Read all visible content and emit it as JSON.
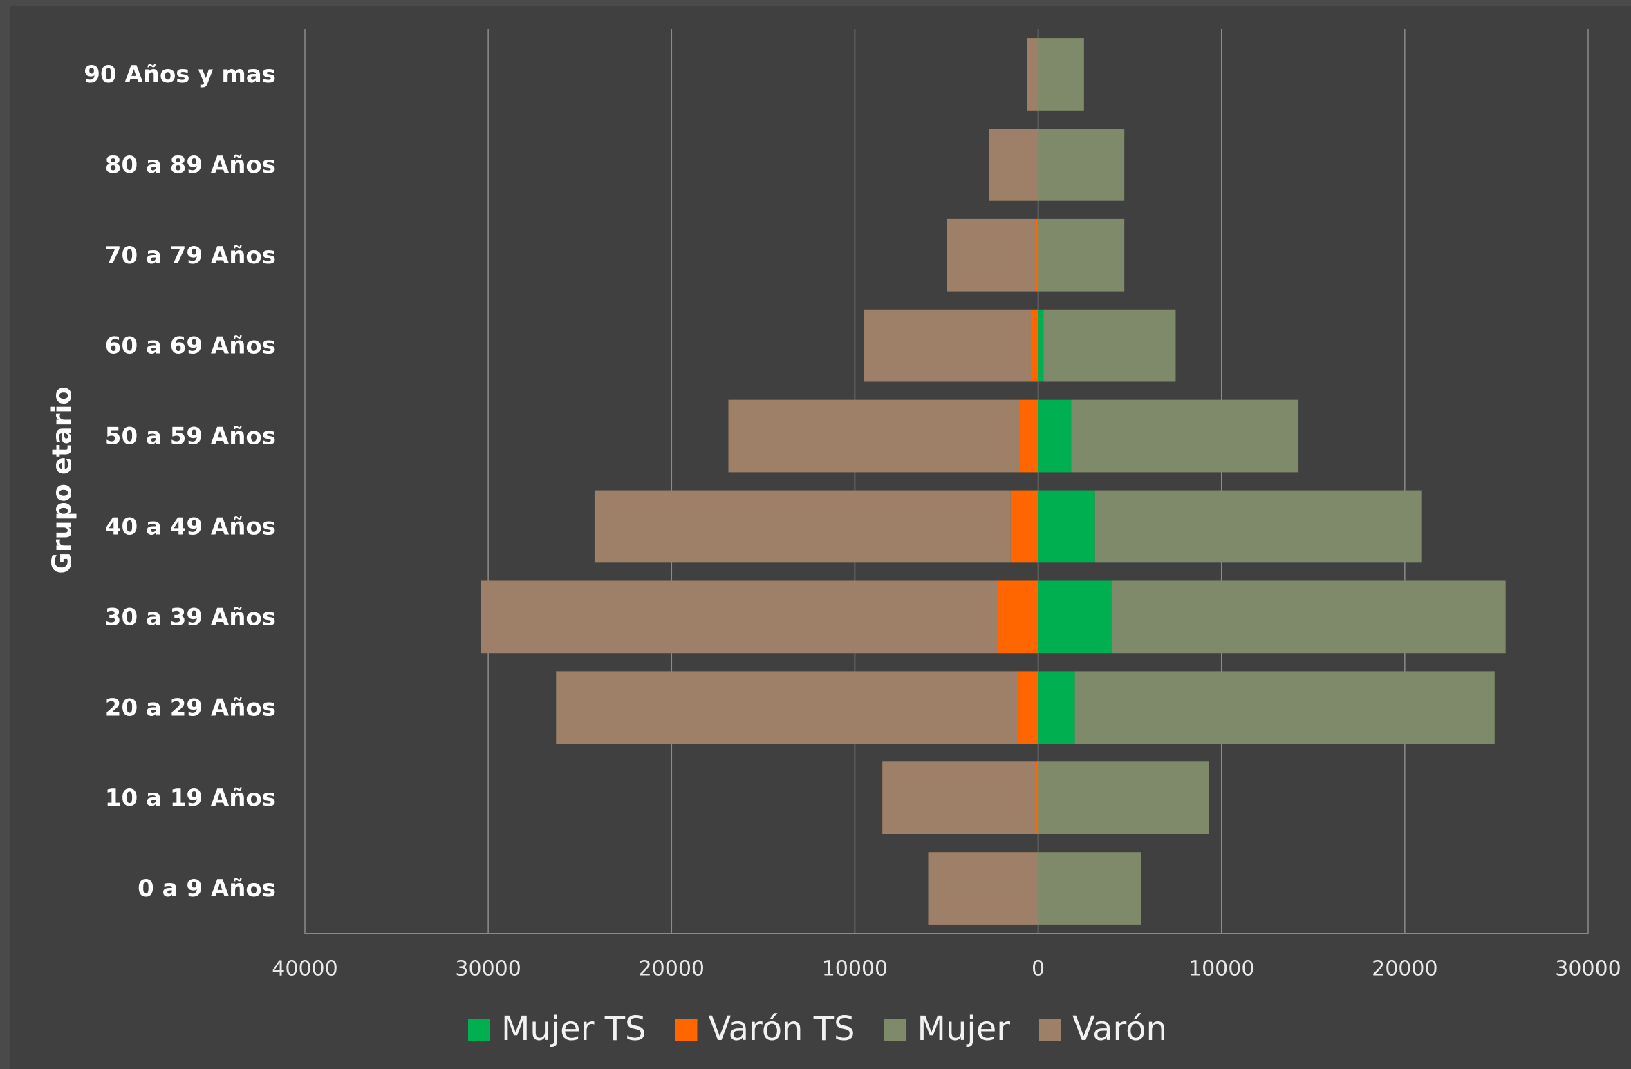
{
  "chart_data": {
    "type": "bar",
    "orientation": "horizontal",
    "stacked": true,
    "y_axis_label": "Grupo etario",
    "categories": [
      "90 Años y mas",
      "80 a 89 Años",
      "70 a 79 Años",
      "60 a 69 Años",
      "50 a 59 Años",
      "40 a 49 Años",
      "30 a 39 Años",
      "20 a 29 Años",
      "10 a 19 Años",
      "0 a 9 Años"
    ],
    "series": [
      {
        "name": "Mujer TS",
        "color": "#00b050",
        "values": [
          0,
          0,
          0,
          300,
          1800,
          3100,
          4000,
          2000,
          0,
          0
        ]
      },
      {
        "name": "Varón TS",
        "color": "#ff6600",
        "values": [
          0,
          0,
          -100,
          -400,
          -1000,
          -1500,
          -2200,
          -1100,
          -100,
          0
        ]
      },
      {
        "name": "Mujer",
        "color": "#7f8a6a",
        "values": [
          2500,
          4700,
          4700,
          7200,
          12400,
          17800,
          21500,
          22900,
          9300,
          5600
        ]
      },
      {
        "name": "Varón",
        "color": "#9e8068",
        "values": [
          -600,
          -2700,
          -4900,
          -9100,
          -15900,
          -22700,
          -28200,
          -25200,
          -8400,
          -6000
        ]
      }
    ],
    "xlim": [
      -40000,
      30000
    ],
    "xticks": [
      {
        "value": -40000,
        "label": "40000"
      },
      {
        "value": -30000,
        "label": "30000"
      },
      {
        "value": -20000,
        "label": "20000"
      },
      {
        "value": -10000,
        "label": "10000"
      },
      0,
      10000,
      20000,
      30000
    ],
    "grid": true,
    "legend": "bottom"
  }
}
